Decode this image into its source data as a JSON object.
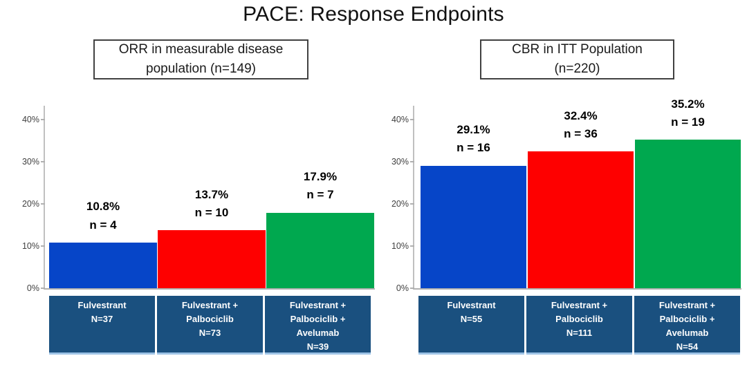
{
  "title": "PACE: Response Endpoints",
  "colors": {
    "bar_blue": "#0645C8",
    "bar_red": "#FE0000",
    "bar_green": "#00A84F",
    "category_box": "#1A507F",
    "category_text": "#FFFFFF",
    "axis_line": "#B0B0B0",
    "tick_text": "#3F3F3F",
    "data_label_text": "#000000"
  },
  "chart_data": [
    {
      "type": "bar",
      "title": "ORR in measurable disease population (n=149)",
      "title_lines": [
        "ORR in measurable disease",
        "population (n=149)"
      ],
      "categories": [
        "Fulvestrant N=37",
        "Fulvestrant + Palbociclib N=73",
        "Fulvestrant + Palbociclib + Avelumab N=39"
      ],
      "category_lines": [
        [
          "Fulvestrant",
          "N=37"
        ],
        [
          "Fulvestrant +",
          "Palbociclib",
          "N=73"
        ],
        [
          "Fulvestrant +",
          "Palbociclib +",
          "Avelumab",
          "N=39"
        ]
      ],
      "values": [
        10.8,
        13.7,
        17.9
      ],
      "counts": [
        4,
        10,
        7
      ],
      "bar_labels": [
        "10.8%\nn = 4",
        "13.7%\nn = 10",
        "17.9%\nn = 7"
      ],
      "bar_colors": [
        "#0645C8",
        "#FE0000",
        "#00A84F"
      ],
      "xlabel": "",
      "ylabel": "",
      "ylim": [
        0,
        43
      ],
      "yticks": [
        0,
        10,
        20,
        30,
        40
      ],
      "ytick_labels": [
        "0%",
        "10%",
        "20%",
        "30%",
        "40%"
      ],
      "grid": false,
      "legend": false
    },
    {
      "type": "bar",
      "title": "CBR in ITT Population (n=220)",
      "title_lines": [
        "CBR in ITT Population",
        "(n=220)"
      ],
      "categories": [
        "Fulvestrant N=55",
        "Fulvestrant + Palbociclib N=111",
        "Fulvestrant + Palbociclib + Avelumab N=54"
      ],
      "category_lines": [
        [
          "Fulvestrant",
          "N=55"
        ],
        [
          "Fulvestrant +",
          "Palbociclib",
          "N=111"
        ],
        [
          "Fulvestrant +",
          "Palbociclib +",
          "Avelumab",
          "N=54"
        ]
      ],
      "values": [
        29.1,
        32.4,
        35.2
      ],
      "counts": [
        16,
        36,
        19
      ],
      "bar_labels": [
        "29.1%\nn = 16",
        "32.4%\nn = 36",
        "35.2%\nn = 19"
      ],
      "bar_colors": [
        "#0645C8",
        "#FE0000",
        "#00A84F"
      ],
      "xlabel": "",
      "ylabel": "",
      "ylim": [
        0,
        43
      ],
      "yticks": [
        0,
        10,
        20,
        30,
        40
      ],
      "ytick_labels": [
        "0%",
        "10%",
        "20%",
        "30%",
        "40%"
      ],
      "grid": false,
      "legend": false
    }
  ]
}
